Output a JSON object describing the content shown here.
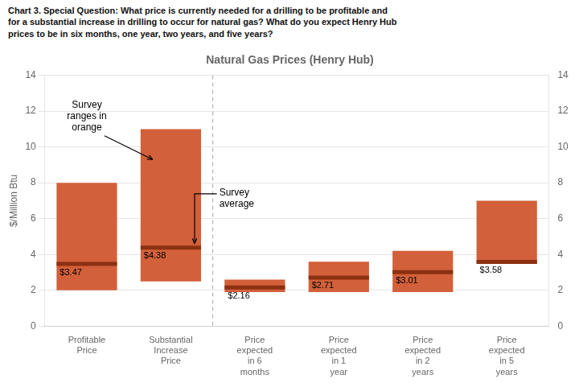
{
  "chart_data": {
    "type": "bar",
    "title": "Natural Gas Prices (Henry Hub)",
    "subtitle": "Chart 3. Special Question: What price is currently needed for a drilling to be profitable and\nfor a substantial increase in drilling to occur for natural gas? What do you expect Henry Hub\nprices to be in six months, one year, two years, and five years?",
    "ylabel": "$/Million Btu",
    "categories": [
      "Profitable\nPrice",
      "Substantial\nIncrease\nPrice",
      "Price\nexpected\nin 6\nmonths",
      "Price\nexpected\nin 1\nyear",
      "Price\nexpected\nin 2\nyears",
      "Price\nexpected\nin 5\nyears"
    ],
    "series": [
      {
        "type": "bar",
        "color": "#D2603A",
        "low": [
          2.0,
          2.5,
          1.9,
          1.9,
          1.9,
          3.5
        ],
        "high": [
          8.0,
          11.0,
          2.6,
          3.6,
          4.2,
          7.0
        ]
      },
      {
        "type": "scatter",
        "marker": "line",
        "color": "#8B3010",
        "values": [
          3.47,
          4.38,
          2.16,
          2.71,
          3.01,
          3.58
        ],
        "value_labels": [
          "$3.47",
          "$4.38",
          "$2.16",
          "$2.71",
          "$3.01",
          "$3.58"
        ]
      }
    ],
    "data_labels": true,
    "annotations": [
      "Survey\nranges in\norange",
      "Survey\naverage"
    ],
    "ylim": [
      0,
      14
    ],
    "yticks": [
      0,
      2,
      4,
      6,
      8,
      10,
      12,
      14
    ],
    "y2lim": [
      0,
      14
    ],
    "y2ticks": [
      0,
      2,
      4,
      6,
      8,
      10,
      12,
      14
    ],
    "grid": true
  }
}
